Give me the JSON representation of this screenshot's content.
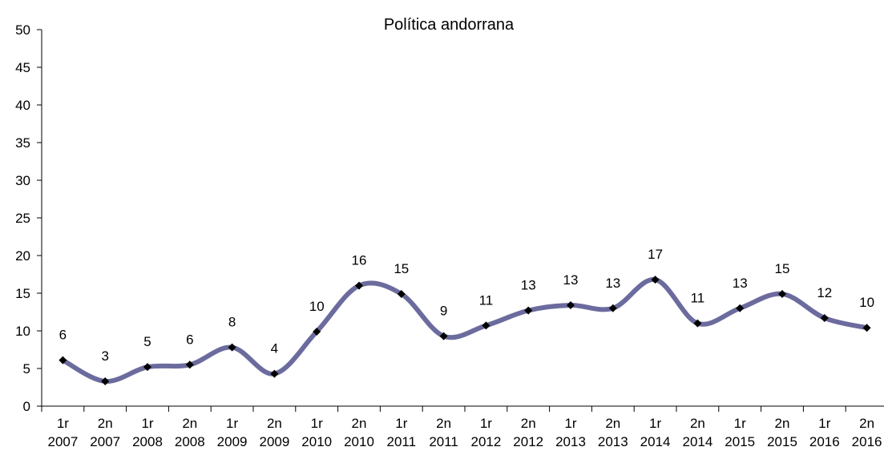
{
  "chart_data": {
    "type": "line",
    "title": "Política andorrana",
    "xlabel": "",
    "ylabel": "",
    "ylim": [
      0,
      50
    ],
    "y_ticks": [
      "0",
      "5",
      "10",
      "15",
      "20",
      "25",
      "30",
      "35",
      "40",
      "45",
      "50"
    ],
    "categories": [
      [
        "1r",
        "2007"
      ],
      [
        "2n",
        "2007"
      ],
      [
        "1r",
        "2008"
      ],
      [
        "2n",
        "2008"
      ],
      [
        "1r",
        "2009"
      ],
      [
        "2n",
        "2009"
      ],
      [
        "1r",
        "2010"
      ],
      [
        "2n",
        "2010"
      ],
      [
        "1r",
        "2011"
      ],
      [
        "2n",
        "2011"
      ],
      [
        "1r",
        "2012"
      ],
      [
        "2n",
        "2012"
      ],
      [
        "1r",
        "2013"
      ],
      [
        "2n",
        "2013"
      ],
      [
        "1r",
        "2014"
      ],
      [
        "2n",
        "2014"
      ],
      [
        "1r",
        "2015"
      ],
      [
        "2n",
        "2015"
      ],
      [
        "1r",
        "2016"
      ],
      [
        "2n",
        "2016"
      ]
    ],
    "values": [
      6.1,
      3.3,
      5.2,
      5.5,
      7.8,
      4.3,
      9.9,
      16.0,
      14.9,
      9.3,
      10.7,
      12.7,
      13.4,
      13.0,
      16.8,
      11.0,
      13.0,
      14.9,
      11.7,
      10.4
    ],
    "data_labels": [
      "6",
      "3",
      "5",
      "6",
      "8",
      "4",
      "10",
      "16",
      "15",
      "9",
      "11",
      "13",
      "13",
      "13",
      "17",
      "11",
      "13",
      "15",
      "12",
      "10"
    ],
    "grid": false,
    "legend": "none",
    "colors": {
      "line": "#6b6b9e",
      "marker": "#000000",
      "axis": "#000000"
    }
  }
}
